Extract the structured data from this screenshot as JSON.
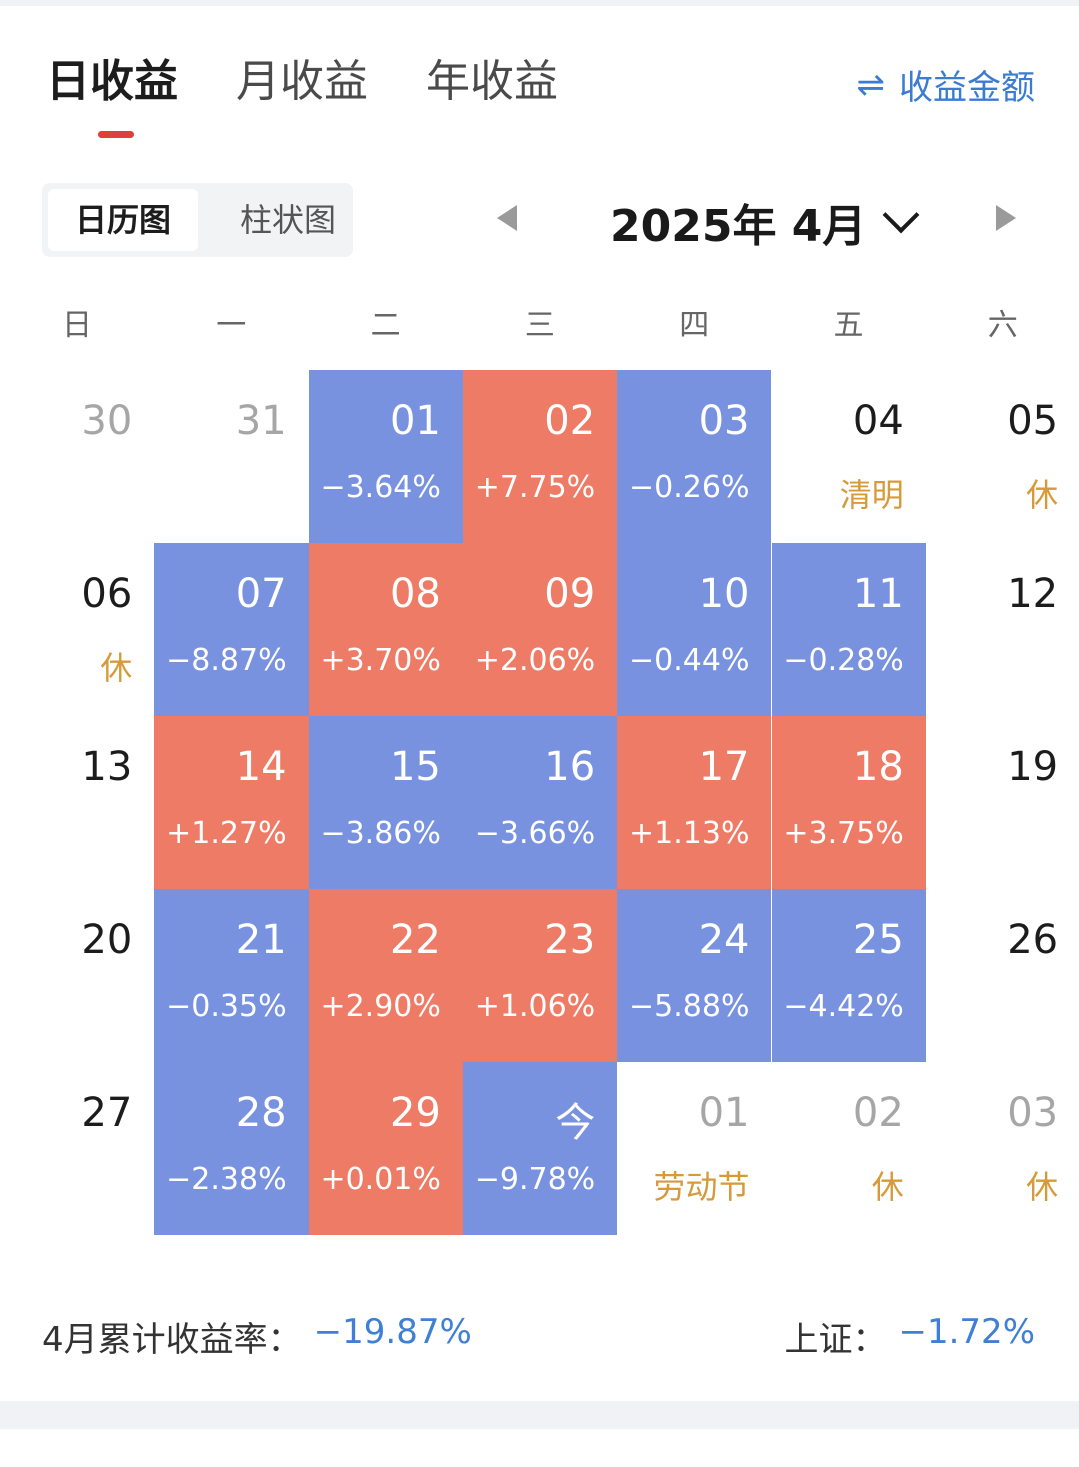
{
  "tabs": [
    {
      "label": "日收益",
      "active": true
    },
    {
      "label": "月收益",
      "active": false
    },
    {
      "label": "年收益",
      "active": false
    }
  ],
  "toggle": {
    "icon": "swap-icon",
    "label": "收益金额"
  },
  "view_switch": {
    "active": "日历图",
    "inactive": "柱状图"
  },
  "month_nav": {
    "title": "2025年 4月"
  },
  "weekdays": [
    "日",
    "一",
    "二",
    "三",
    "四",
    "五",
    "六"
  ],
  "colors": {
    "up": "#ee7b65",
    "down": "#7892e0",
    "holiday": "#d79a3a",
    "accent": "#3f7fd6"
  },
  "calendar": [
    [
      {
        "day": "30",
        "sub": "",
        "type": "muted"
      },
      {
        "day": "31",
        "sub": "",
        "type": "muted"
      },
      {
        "day": "01",
        "sub": "−3.64%",
        "type": "down"
      },
      {
        "day": "02",
        "sub": "+7.75%",
        "type": "up"
      },
      {
        "day": "03",
        "sub": "−0.26%",
        "type": "down"
      },
      {
        "day": "04",
        "sub": "清明",
        "type": "holiday"
      },
      {
        "day": "05",
        "sub": "休",
        "type": "holiday"
      }
    ],
    [
      {
        "day": "06",
        "sub": "休",
        "type": "holiday"
      },
      {
        "day": "07",
        "sub": "−8.87%",
        "type": "down"
      },
      {
        "day": "08",
        "sub": "+3.70%",
        "type": "up"
      },
      {
        "day": "09",
        "sub": "+2.06%",
        "type": "up"
      },
      {
        "day": "10",
        "sub": "−0.44%",
        "type": "down"
      },
      {
        "day": "11",
        "sub": "−0.28%",
        "type": "down"
      },
      {
        "day": "12",
        "sub": "",
        "type": "plain"
      }
    ],
    [
      {
        "day": "13",
        "sub": "",
        "type": "plain"
      },
      {
        "day": "14",
        "sub": "+1.27%",
        "type": "up"
      },
      {
        "day": "15",
        "sub": "−3.86%",
        "type": "down"
      },
      {
        "day": "16",
        "sub": "−3.66%",
        "type": "down"
      },
      {
        "day": "17",
        "sub": "+1.13%",
        "type": "up"
      },
      {
        "day": "18",
        "sub": "+3.75%",
        "type": "up"
      },
      {
        "day": "19",
        "sub": "",
        "type": "plain"
      }
    ],
    [
      {
        "day": "20",
        "sub": "",
        "type": "plain"
      },
      {
        "day": "21",
        "sub": "−0.35%",
        "type": "down"
      },
      {
        "day": "22",
        "sub": "+2.90%",
        "type": "up"
      },
      {
        "day": "23",
        "sub": "+1.06%",
        "type": "up"
      },
      {
        "day": "24",
        "sub": "−5.88%",
        "type": "down"
      },
      {
        "day": "25",
        "sub": "−4.42%",
        "type": "down"
      },
      {
        "day": "26",
        "sub": "",
        "type": "plain"
      }
    ],
    [
      {
        "day": "27",
        "sub": "",
        "type": "plain"
      },
      {
        "day": "28",
        "sub": "−2.38%",
        "type": "down"
      },
      {
        "day": "29",
        "sub": "+0.01%",
        "type": "up"
      },
      {
        "day": "今",
        "sub": "−9.78%",
        "type": "down"
      },
      {
        "day": "01",
        "sub": "劳动节",
        "type": "muted-holiday"
      },
      {
        "day": "02",
        "sub": "休",
        "type": "muted-holiday"
      },
      {
        "day": "03",
        "sub": "休",
        "type": "muted-holiday"
      }
    ]
  ],
  "footer": {
    "cumulative_label": "4月累计收益率：",
    "cumulative_value": "−19.87%",
    "index_label": "上证：",
    "index_value": "−1.72%"
  }
}
